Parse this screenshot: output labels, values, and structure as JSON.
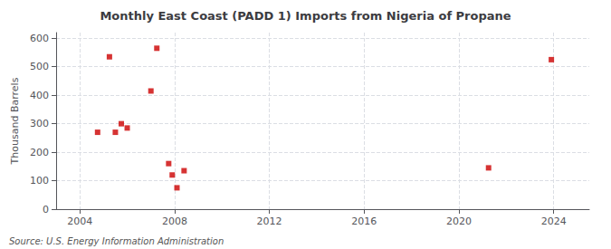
{
  "chart_data": {
    "type": "scatter",
    "title": "Monthly East Coast (PADD 1) Imports from Nigeria of Propane",
    "ylabel": "Thousand Barrels",
    "annotations": [
      "Source: U.S. Energy Information Administration"
    ],
    "color": "#cc0000",
    "marker": "square",
    "x": [
      2004.75,
      2005.25,
      2005.5,
      2005.75,
      2006.0,
      2007.0,
      2007.25,
      2007.75,
      2007.9,
      2008.1,
      2008.4,
      2021.25,
      2023.9
    ],
    "values": [
      270,
      535,
      270,
      300,
      285,
      415,
      565,
      160,
      120,
      75,
      135,
      145,
      525
    ],
    "xlim": [
      2003.0,
      2025.5
    ],
    "ylim": [
      0,
      620
    ],
    "xticks": [
      2004,
      2008,
      2012,
      2016,
      2020,
      2024
    ],
    "yticks": [
      0,
      100,
      200,
      300,
      400,
      500,
      600
    ],
    "grid": true
  }
}
